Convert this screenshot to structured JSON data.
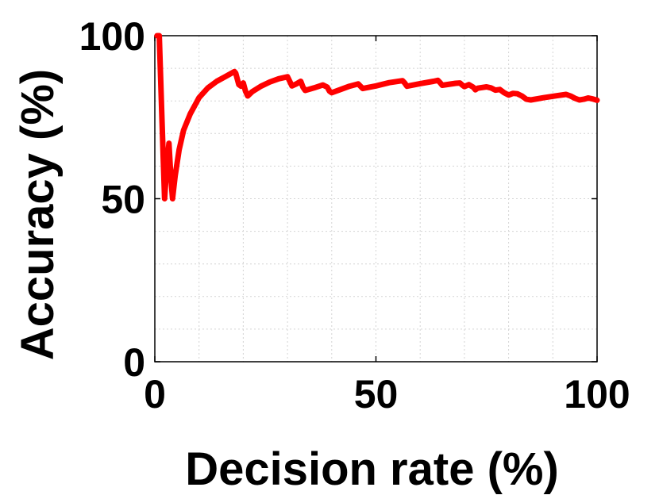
{
  "chart_data": {
    "type": "line",
    "xlabel": "Decision rate (%)",
    "ylabel": "Accuracy (%)",
    "xlim": [
      0,
      100
    ],
    "ylim": [
      0,
      100
    ],
    "x_ticks": [
      "0",
      "50",
      "100"
    ],
    "y_ticks": [
      "0",
      "50",
      "100"
    ],
    "grid": "on (minor, dotted)",
    "legend": "none",
    "series": [
      {
        "color": "#ff0000",
        "x": [
          0.5,
          1.0,
          1.6,
          2.2,
          2.7,
          3.2,
          3.6,
          4.0,
          4.6,
          5.5,
          6.5,
          8,
          10,
          12,
          14,
          16,
          18,
          18.3,
          19,
          19.5,
          20,
          20.5,
          21,
          22,
          24,
          26,
          28,
          30,
          30.5,
          31,
          32,
          33,
          33.5,
          34,
          36,
          38,
          39,
          39.5,
          40,
          42,
          44,
          46,
          46.5,
          47,
          50,
          53,
          56,
          56.5,
          57,
          60,
          63,
          64,
          64.5,
          65,
          68,
          69,
          69.5,
          70,
          71,
          72,
          72.5,
          73,
          75,
          76,
          77,
          78,
          79,
          80,
          81,
          82,
          83,
          84,
          85,
          88,
          91,
          93,
          94,
          95,
          96,
          97,
          98,
          99,
          100
        ],
        "y": [
          100,
          100,
          75,
          50,
          60,
          67,
          57,
          50,
          57,
          65,
          71,
          76,
          81,
          84,
          86,
          87.5,
          89,
          88.5,
          85,
          84.5,
          85.5,
          83,
          81.5,
          82.8,
          84.5,
          85.8,
          86.8,
          87.4,
          86,
          84.6,
          85.2,
          86,
          84.2,
          83.2,
          84,
          84.9,
          84.2,
          83,
          82.5,
          83.5,
          84.5,
          85.2,
          84.5,
          83.8,
          84.6,
          85.6,
          86.2,
          85.5,
          84.5,
          85.3,
          86,
          86.3,
          85.6,
          84.8,
          85.4,
          85.5,
          84.9,
          84.4,
          85,
          84.2,
          83.4,
          83.9,
          84.3,
          84,
          83.3,
          83.5,
          82.5,
          81.8,
          82.3,
          82.2,
          81.5,
          80.5,
          80.3,
          81,
          81.6,
          82,
          81.5,
          80.8,
          80.3,
          80.5,
          80.9,
          80.6,
          80.2
        ]
      }
    ]
  }
}
